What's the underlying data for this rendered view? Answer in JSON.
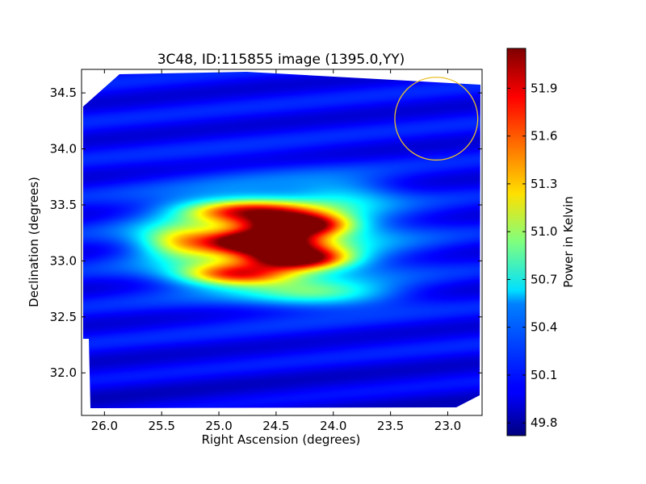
{
  "chart_data": {
    "type": "heatmap",
    "title": "3C48, ID:115855 image (1395.0,YY)",
    "xlabel": "Right Ascension (degrees)",
    "ylabel": "Declination (degrees)",
    "xlim": [
      26.2,
      22.7
    ],
    "ylim": [
      31.62,
      34.71
    ],
    "xticks": [
      26.0,
      25.5,
      25.0,
      24.5,
      24.0,
      23.5,
      23.0
    ],
    "xtick_labels": [
      "26.0",
      "25.5",
      "25.0",
      "24.5",
      "24.0",
      "23.5",
      "23.0"
    ],
    "yticks": [
      32.0,
      32.5,
      33.0,
      33.5,
      34.0,
      34.5
    ],
    "ytick_labels": [
      "32.0",
      "32.5",
      "33.0",
      "33.5",
      "34.0",
      "34.5"
    ],
    "colorbar": {
      "label": "Power in Kelvin",
      "colormap": "jet",
      "range": [
        49.72,
        52.15
      ],
      "ticks": [
        49.8,
        50.1,
        50.4,
        50.7,
        51.0,
        51.3,
        51.6,
        51.9
      ],
      "tick_labels": [
        "49.8",
        "50.1",
        "50.4",
        "50.7",
        "51.0",
        "51.3",
        "51.6",
        "51.9"
      ]
    },
    "background_level": 50.02,
    "blobs": [
      {
        "ra": 24.65,
        "dec": 33.17,
        "peak": 52.1,
        "sigma_ra": 0.32,
        "sigma_dec": 0.07
      },
      {
        "ra": 24.3,
        "dec": 33.32,
        "peak": 51.92,
        "sigma_ra": 0.3,
        "sigma_dec": 0.07
      },
      {
        "ra": 24.3,
        "dec": 33.02,
        "peak": 51.82,
        "sigma_ra": 0.3,
        "sigma_dec": 0.07
      },
      {
        "ra": 24.85,
        "dec": 32.88,
        "peak": 51.45,
        "sigma_ra": 0.35,
        "sigma_dec": 0.07
      },
      {
        "ra": 24.75,
        "dec": 33.45,
        "peak": 51.3,
        "sigma_ra": 0.4,
        "sigma_dec": 0.07
      },
      {
        "ra": 24.55,
        "dec": 33.2,
        "peak": 50.95,
        "sigma_ra": 0.7,
        "sigma_dec": 0.3
      },
      {
        "ra": 24.1,
        "dec": 32.7,
        "peak": 50.65,
        "sigma_ra": 0.45,
        "sigma_dec": 0.08
      },
      {
        "ra": 25.35,
        "dec": 33.17,
        "peak": 50.85,
        "sigma_ra": 0.25,
        "sigma_dec": 0.1
      },
      {
        "ra": 23.9,
        "dec": 33.6,
        "peak": 50.35,
        "sigma_ra": 0.3,
        "sigma_dec": 0.1
      }
    ],
    "stripes": {
      "dec_period": 0.33,
      "amplitude": 0.1
    },
    "beam_circle": {
      "ra": 23.1,
      "dec": 34.27,
      "radius_deg": 0.37,
      "color": "#e8c030"
    }
  }
}
